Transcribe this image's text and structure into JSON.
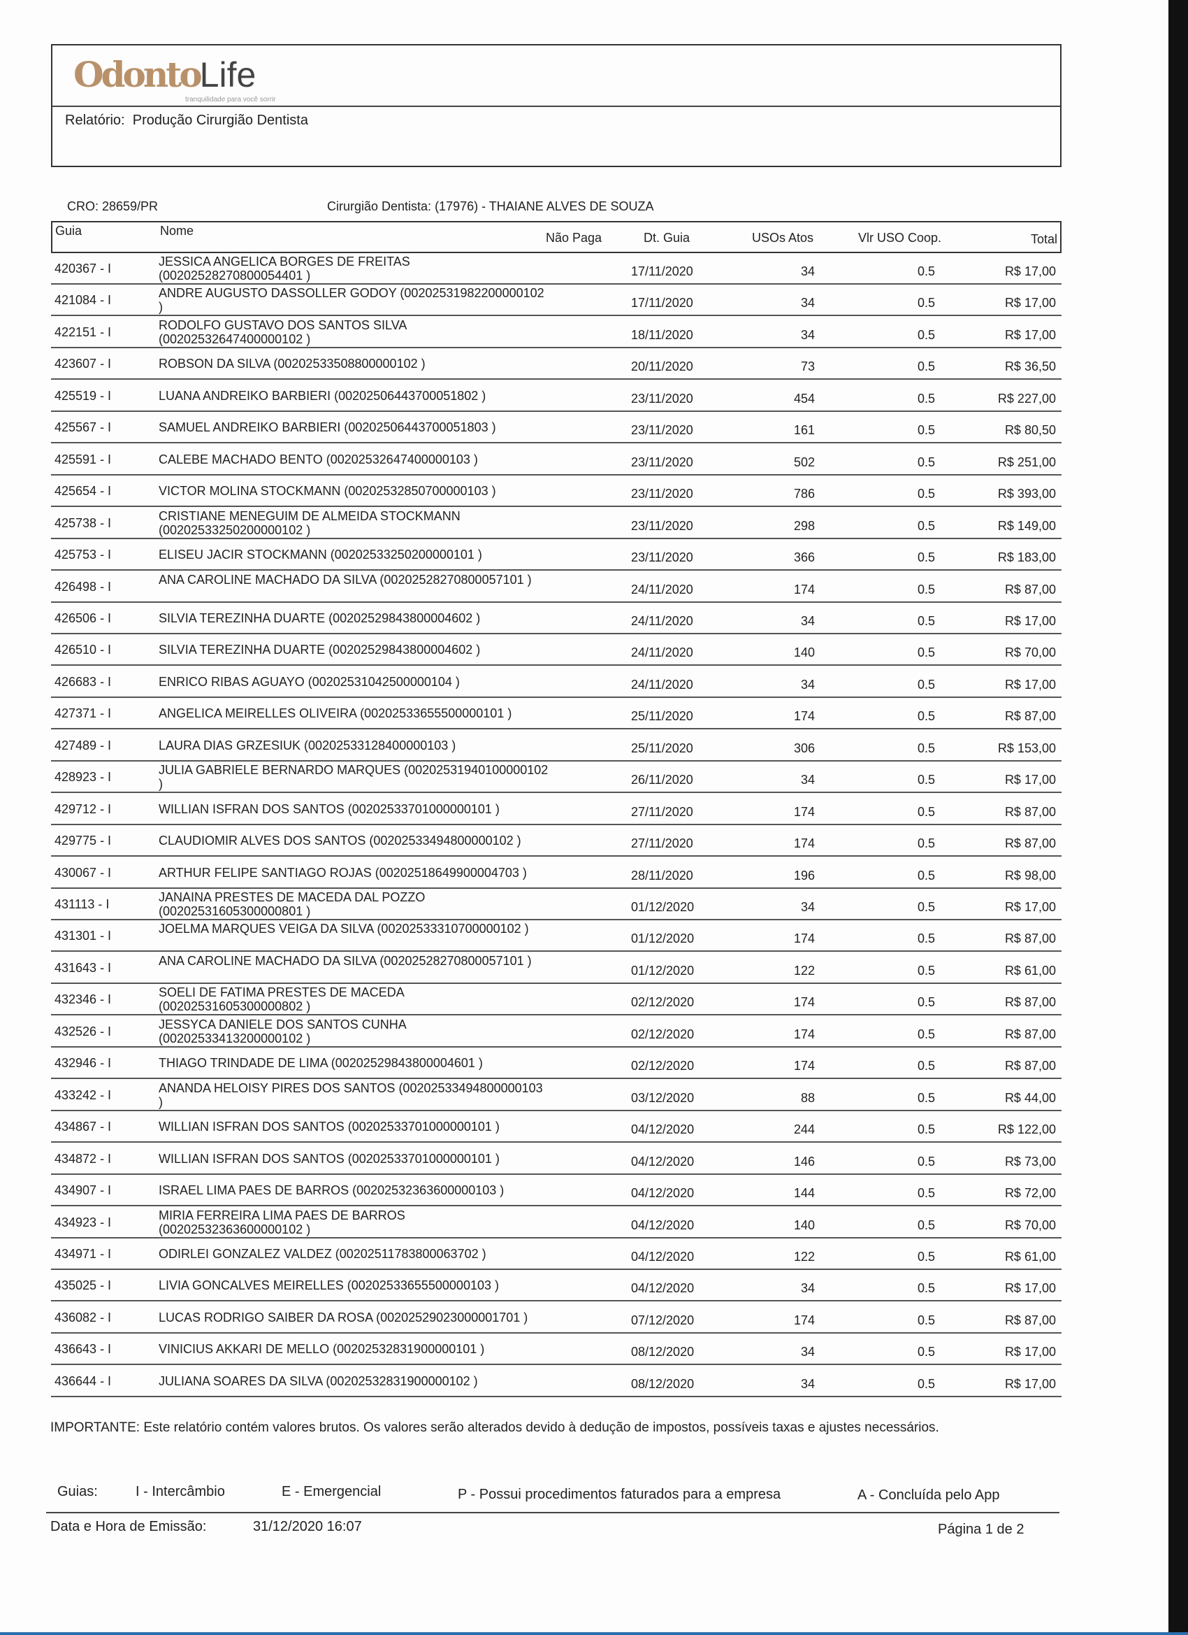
{
  "header": {
    "logo_text": "OdontoLife",
    "logo_tagline": "tranquilidade para você sorrir",
    "report_label": "Relatório:",
    "report_title": "Produção Cirurgião Dentista"
  },
  "info": {
    "cro": "CRO:  28659/PR",
    "dentist": "Cirurgião Dentista: (17976) - THAIANE ALVES DE SOUZA"
  },
  "table": {
    "columns": [
      "Guia",
      "Nome",
      "Não Paga",
      "Dt. Guia",
      "USOs Atos",
      "Vlr USO Coop.",
      "Total"
    ],
    "rows": [
      {
        "guia": "420367 - I",
        "nome": "JESSICA ANGELICA BORGES DE FREITAS (00202528270800054401 )",
        "dt": "17/11/2020",
        "usos": "34",
        "vlr": "0.5",
        "total": "R$ 17,00"
      },
      {
        "guia": "421084 - I",
        "nome": "ANDRE AUGUSTO DASSOLLER GODOY (00202531982200000102 )",
        "dt": "17/11/2020",
        "usos": "34",
        "vlr": "0.5",
        "total": "R$ 17,00"
      },
      {
        "guia": "422151 - I",
        "nome": "RODOLFO GUSTAVO DOS SANTOS SILVA (00202532647400000102 )",
        "dt": "18/11/2020",
        "usos": "34",
        "vlr": "0.5",
        "total": "R$ 17,00"
      },
      {
        "guia": "423607 - I",
        "nome": "ROBSON DA SILVA (00202533508800000102 )",
        "dt": "20/11/2020",
        "usos": "73",
        "vlr": "0.5",
        "total": "R$ 36,50"
      },
      {
        "guia": "425519 - I",
        "nome": "LUANA ANDREIKO BARBIERI (00202506443700051802 )",
        "dt": "23/11/2020",
        "usos": "454",
        "vlr": "0.5",
        "total": "R$ 227,00"
      },
      {
        "guia": "425567 - I",
        "nome": "SAMUEL ANDREIKO BARBIERI (00202506443700051803 )",
        "dt": "23/11/2020",
        "usos": "161",
        "vlr": "0.5",
        "total": "R$ 80,50"
      },
      {
        "guia": "425591 - I",
        "nome": "CALEBE MACHADO BENTO (00202532647400000103 )",
        "dt": "23/11/2020",
        "usos": "502",
        "vlr": "0.5",
        "total": "R$ 251,00"
      },
      {
        "guia": "425654 - I",
        "nome": "VICTOR MOLINA STOCKMANN (00202532850700000103 )",
        "dt": "23/11/2020",
        "usos": "786",
        "vlr": "0.5",
        "total": "R$ 393,00"
      },
      {
        "guia": "425738 - I",
        "nome": "CRISTIANE MENEGUIM DE ALMEIDA STOCKMANN (00202533250200000102 )",
        "dt": "23/11/2020",
        "usos": "298",
        "vlr": "0.5",
        "total": "R$ 149,00"
      },
      {
        "guia": "425753 - I",
        "nome": "ELISEU JACIR STOCKMANN (00202533250200000101 )",
        "dt": "23/11/2020",
        "usos": "366",
        "vlr": "0.5",
        "total": "R$ 183,00"
      },
      {
        "guia": "426498 - I",
        "nome": "ANA CAROLINE MACHADO DA SILVA (00202528270800057101 )",
        "dt": "24/11/2020",
        "usos": "174",
        "vlr": "0.5",
        "total": "R$ 87,00"
      },
      {
        "guia": "426506 - I",
        "nome": "SILVIA TEREZINHA DUARTE (00202529843800004602 )",
        "dt": "24/11/2020",
        "usos": "34",
        "vlr": "0.5",
        "total": "R$ 17,00"
      },
      {
        "guia": "426510 - I",
        "nome": "SILVIA TEREZINHA DUARTE (00202529843800004602 )",
        "dt": "24/11/2020",
        "usos": "140",
        "vlr": "0.5",
        "total": "R$ 70,00"
      },
      {
        "guia": "426683 - I",
        "nome": "ENRICO RIBAS AGUAYO (00202531042500000104 )",
        "dt": "24/11/2020",
        "usos": "34",
        "vlr": "0.5",
        "total": "R$ 17,00"
      },
      {
        "guia": "427371 - I",
        "nome": "ANGELICA MEIRELLES OLIVEIRA (00202533655500000101 )",
        "dt": "25/11/2020",
        "usos": "174",
        "vlr": "0.5",
        "total": "R$ 87,00"
      },
      {
        "guia": "427489 - I",
        "nome": "LAURA DIAS GRZESIUK (00202533128400000103 )",
        "dt": "25/11/2020",
        "usos": "306",
        "vlr": "0.5",
        "total": "R$ 153,00"
      },
      {
        "guia": "428923 - I",
        "nome": "JULIA GABRIELE BERNARDO MARQUES (00202531940100000102 )",
        "dt": "26/11/2020",
        "usos": "34",
        "vlr": "0.5",
        "total": "R$ 17,00"
      },
      {
        "guia": "429712 - I",
        "nome": "WILLIAN ISFRAN DOS SANTOS (00202533701000000101 )",
        "dt": "27/11/2020",
        "usos": "174",
        "vlr": "0.5",
        "total": "R$ 87,00"
      },
      {
        "guia": "429775 - I",
        "nome": "CLAUDIOMIR ALVES DOS SANTOS (00202533494800000102 )",
        "dt": "27/11/2020",
        "usos": "174",
        "vlr": "0.5",
        "total": "R$ 87,00"
      },
      {
        "guia": "430067 - I",
        "nome": "ARTHUR FELIPE SANTIAGO ROJAS (00202518649900004703 )",
        "dt": "28/11/2020",
        "usos": "196",
        "vlr": "0.5",
        "total": "R$ 98,00"
      },
      {
        "guia": "431113 - I",
        "nome": "JANAINA PRESTES DE MACEDA DAL POZZO (00202531605300000801 )",
        "dt": "01/12/2020",
        "usos": "34",
        "vlr": "0.5",
        "total": "R$ 17,00"
      },
      {
        "guia": "431301 - I",
        "nome": "JOELMA MARQUES VEIGA DA SILVA (00202533310700000102 )",
        "dt": "01/12/2020",
        "usos": "174",
        "vlr": "0.5",
        "total": "R$ 87,00"
      },
      {
        "guia": "431643 - I",
        "nome": "ANA CAROLINE MACHADO DA SILVA (00202528270800057101 )",
        "dt": "01/12/2020",
        "usos": "122",
        "vlr": "0.5",
        "total": "R$ 61,00"
      },
      {
        "guia": "432346 - I",
        "nome": "SOELI DE FATIMA PRESTES DE MACEDA (00202531605300000802 )",
        "dt": "02/12/2020",
        "usos": "174",
        "vlr": "0.5",
        "total": "R$ 87,00"
      },
      {
        "guia": "432526 - I",
        "nome": "JESSYCA DANIELE DOS SANTOS CUNHA (00202533413200000102 )",
        "dt": "02/12/2020",
        "usos": "174",
        "vlr": "0.5",
        "total": "R$ 87,00"
      },
      {
        "guia": "432946 - I",
        "nome": "THIAGO TRINDADE DE LIMA (00202529843800004601 )",
        "dt": "02/12/2020",
        "usos": "174",
        "vlr": "0.5",
        "total": "R$ 87,00"
      },
      {
        "guia": "433242 - I",
        "nome": "ANANDA HELOISY PIRES DOS SANTOS (00202533494800000103 )",
        "dt": "03/12/2020",
        "usos": "88",
        "vlr": "0.5",
        "total": "R$ 44,00"
      },
      {
        "guia": "434867 - I",
        "nome": "WILLIAN ISFRAN DOS SANTOS (00202533701000000101 )",
        "dt": "04/12/2020",
        "usos": "244",
        "vlr": "0.5",
        "total": "R$ 122,00"
      },
      {
        "guia": "434872 - I",
        "nome": "WILLIAN ISFRAN DOS SANTOS (00202533701000000101 )",
        "dt": "04/12/2020",
        "usos": "146",
        "vlr": "0.5",
        "total": "R$ 73,00"
      },
      {
        "guia": "434907 - I",
        "nome": "ISRAEL LIMA PAES DE BARROS (00202532363600000103 )",
        "dt": "04/12/2020",
        "usos": "144",
        "vlr": "0.5",
        "total": "R$ 72,00"
      },
      {
        "guia": "434923 - I",
        "nome": "MIRIA FERREIRA LIMA PAES DE BARROS (00202532363600000102 )",
        "dt": "04/12/2020",
        "usos": "140",
        "vlr": "0.5",
        "total": "R$ 70,00"
      },
      {
        "guia": "434971 - I",
        "nome": "ODIRLEI GONZALEZ VALDEZ (00202511783800063702 )",
        "dt": "04/12/2020",
        "usos": "122",
        "vlr": "0.5",
        "total": "R$ 61,00"
      },
      {
        "guia": "435025 - I",
        "nome": "LIVIA GONCALVES MEIRELLES (00202533655500000103 )",
        "dt": "04/12/2020",
        "usos": "34",
        "vlr": "0.5",
        "total": "R$ 17,00"
      },
      {
        "guia": "436082 - I",
        "nome": "LUCAS RODRIGO SAIBER DA ROSA (00202529023000001701 )",
        "dt": "07/12/2020",
        "usos": "174",
        "vlr": "0.5",
        "total": "R$ 87,00"
      },
      {
        "guia": "436643 - I",
        "nome": "VINICIUS AKKARI DE MELLO (00202532831900000101 )",
        "dt": "08/12/2020",
        "usos": "34",
        "vlr": "0.5",
        "total": "R$ 17,00"
      },
      {
        "guia": "436644 - I",
        "nome": "JULIANA SOARES DA SILVA (00202532831900000102 )",
        "dt": "08/12/2020",
        "usos": "34",
        "vlr": "0.5",
        "total": "R$ 17,00"
      }
    ]
  },
  "footer": {
    "note": "IMPORTANTE: Este relatório contém valores brutos. Os valores serão alterados devido à dedução de impostos, possíveis taxas e ajustes necessários.",
    "legend_label": "Guias:",
    "legend": [
      "I - Intercâmbio",
      "E - Emergencial",
      "P - Possui procedimentos faturados para a empresa",
      "A - Concluída pelo App"
    ],
    "emission_label": "Data e Hora de Emissão:",
    "emission_value": "31/12/2020  16:07",
    "page": "Página 1 de 2"
  }
}
